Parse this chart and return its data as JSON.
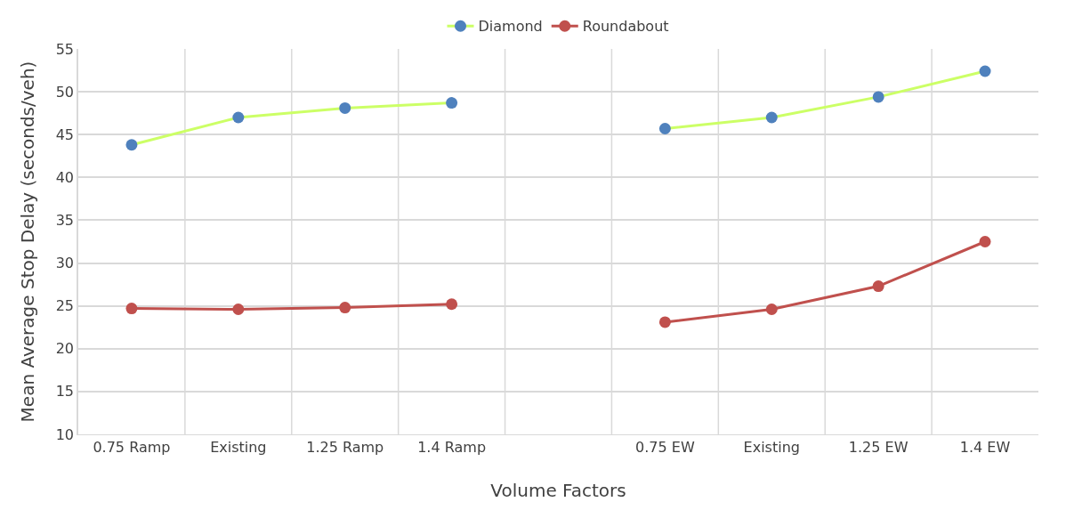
{
  "chart_data": {
    "type": "line",
    "xlabel": "Volume Factors",
    "ylabel": "Mean Average Stop Delay (seconds/veh)",
    "categories": [
      "0.75 Ramp",
      "Existing",
      "1.25 Ramp",
      "1.4 Ramp",
      null,
      "0.75 EW",
      "Existing",
      "1.25 EW",
      "1.4 EW"
    ],
    "series": [
      {
        "name": "Diamond",
        "color": "#ccff66",
        "colors": [
          "#4f81bd",
          "#4f81bd",
          "#4f81bd",
          "#4f81bd",
          null,
          "#4f81bd",
          "#4f81bd",
          "#4f81bd",
          "#4f81bd"
        ],
        "values": [
          43.8,
          47.0,
          48.1,
          48.7,
          null,
          45.7,
          47.0,
          49.4,
          52.4
        ]
      },
      {
        "name": "Roundabout",
        "color": "#c0504d",
        "colors": [
          "#c0504d",
          "#c0504d",
          "#c0504d",
          "#c0504d",
          null,
          "#c0504d",
          "#c0504d",
          "#c0504d",
          "#c0504d"
        ],
        "values": [
          24.7,
          24.6,
          24.8,
          25.2,
          null,
          23.1,
          24.6,
          27.3,
          32.5
        ]
      }
    ],
    "ylim": [
      10,
      55
    ],
    "yticks": [
      10,
      15,
      20,
      25,
      30,
      35,
      40,
      45,
      50,
      55
    ],
    "grid": true,
    "legend": "top",
    "marker": "circle",
    "line_style": "solid"
  }
}
